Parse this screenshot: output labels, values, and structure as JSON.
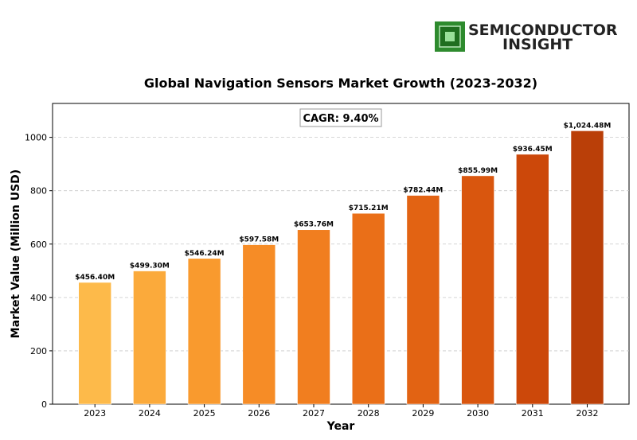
{
  "logo": {
    "line1": "SEMICONDUCTOR",
    "line2": "INSIGHT"
  },
  "chart_data": {
    "type": "bar",
    "title": "Global Navigation Sensors Market Growth (2023-2032)",
    "xlabel": "Year",
    "ylabel": "Market Value (Million USD)",
    "categories": [
      "2023",
      "2024",
      "2025",
      "2026",
      "2027",
      "2028",
      "2029",
      "2030",
      "2031",
      "2032"
    ],
    "values": [
      456.4,
      499.3,
      546.24,
      597.58,
      653.76,
      715.21,
      782.44,
      855.99,
      936.45,
      1024.48
    ],
    "data_labels": [
      "$456.40M",
      "$499.30M",
      "$546.24M",
      "$597.58M",
      "$653.76M",
      "$715.21M",
      "$782.44M",
      "$855.99M",
      "$936.45M",
      "$1,024.48M"
    ],
    "yticks": [
      0,
      200,
      400,
      600,
      800,
      1000
    ],
    "ylim": [
      0,
      1127
    ],
    "grid": "y-dashed",
    "annotation": "CAGR: 9.40%",
    "bar_colors": [
      "#FDBA4A",
      "#FBAA3B",
      "#F99A2E",
      "#F68C26",
      "#F17E1F",
      "#EA6F18",
      "#E26313",
      "#D9560E",
      "#CC480A",
      "#BA3F08"
    ]
  }
}
